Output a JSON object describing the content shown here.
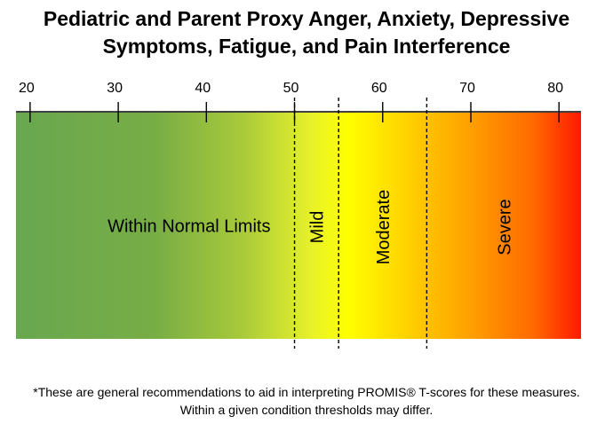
{
  "title": {
    "line1": "Pediatric and Parent Proxy Anger, Anxiety, Depressive",
    "line2": "Symptoms, Fatigue, and Pain Interference"
  },
  "scale": {
    "ticks": [
      20,
      30,
      40,
      50,
      60,
      70,
      80
    ],
    "min": 18.4,
    "max": 82.5,
    "thresholds": [
      50,
      55,
      65
    ],
    "gradient_colors": [
      {
        "at": 20,
        "color": "#6aa84f"
      },
      {
        "at": 34,
        "color": "#77ad45"
      },
      {
        "at": 44,
        "color": "#a8c93a"
      },
      {
        "at": 52,
        "color": "#e8f22a"
      },
      {
        "at": 56,
        "color": "#ffff00"
      },
      {
        "at": 62,
        "color": "#ffd700"
      },
      {
        "at": 70,
        "color": "#ff9f00"
      },
      {
        "at": 77,
        "color": "#ff6a00"
      },
      {
        "at": 82.5,
        "color": "#ff1a00"
      }
    ]
  },
  "categories": [
    {
      "label": "Within Normal Limits",
      "from": 18.4,
      "to": 50,
      "orientation": "horizontal"
    },
    {
      "label": "Mild",
      "from": 50,
      "to": 55,
      "orientation": "vertical"
    },
    {
      "label": "Moderate",
      "from": 55,
      "to": 65,
      "orientation": "vertical"
    },
    {
      "label": "Severe",
      "from": 65,
      "to": 82.5,
      "orientation": "vertical"
    }
  ],
  "footnote": {
    "line1": "*These are general recommendations to aid in interpreting PROMIS® T-scores for these measures.",
    "line2": "Within a given condition thresholds may differ."
  }
}
